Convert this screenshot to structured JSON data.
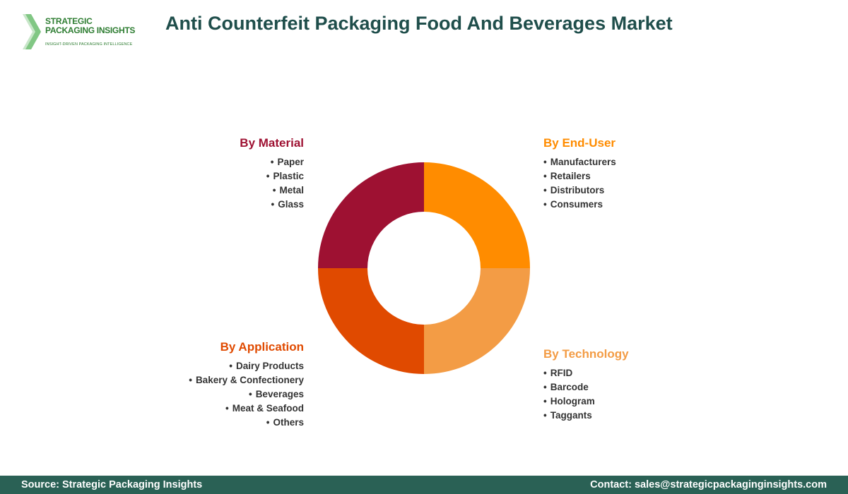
{
  "logo": {
    "line1": "STRATEGIC",
    "line2": "PACKAGING INSIGHTS",
    "tagline": "INSIGHT-DRIVEN PACKAGING INTELLIGENCE"
  },
  "title": "Anti Counterfeit Packaging Food And Beverages Market",
  "colors": {
    "material": "#9e1132",
    "enduser": "#ff8c00",
    "technology": "#f39c45",
    "application": "#e04a00",
    "heading_title": "#1f4e4b",
    "footer_bg": "#2a6155"
  },
  "segments": {
    "material": {
      "heading": "By Material",
      "items": [
        "Paper",
        "Plastic",
        "Metal",
        "Glass"
      ]
    },
    "enduser": {
      "heading": "By End-User",
      "items": [
        "Manufacturers",
        "Retailers",
        "Distributors",
        "Consumers"
      ]
    },
    "application": {
      "heading": "By Application",
      "items": [
        "Dairy Products",
        "Bakery & Confectionery",
        "Beverages",
        "Meat & Seafood",
        "Others"
      ]
    },
    "technology": {
      "heading": "By Technology",
      "items": [
        "RFID",
        "Barcode",
        "Hologram",
        "Taggants"
      ]
    }
  },
  "footer": {
    "source": "Source: Strategic Packaging Insights",
    "contact": "Contact: sales@strategicpackaginginsights.com"
  }
}
